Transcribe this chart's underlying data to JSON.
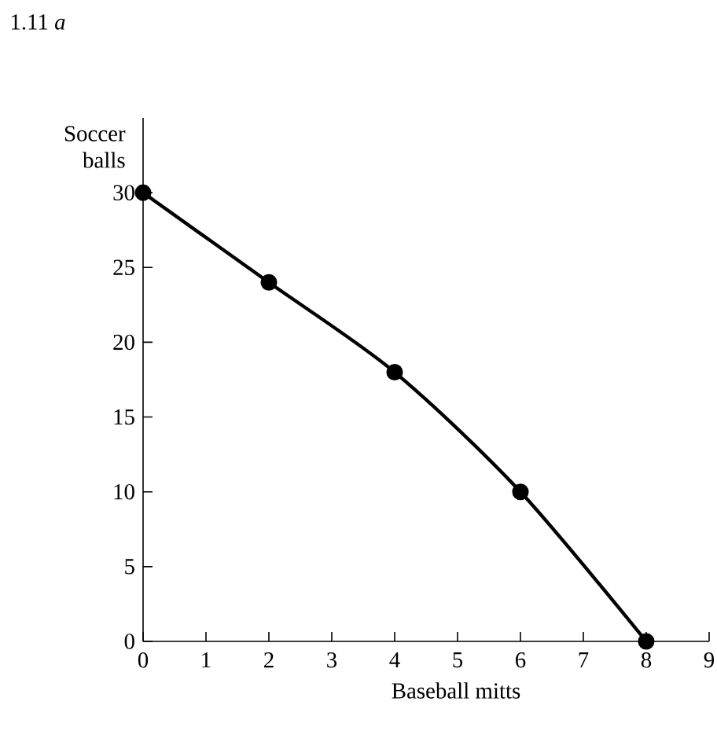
{
  "chart_data": {
    "type": "line",
    "title": "1.11 *a*",
    "xlabel": "Baseball mitts",
    "ylabel": "Soccer balls",
    "x": [
      0,
      2,
      4,
      6,
      8
    ],
    "series": [
      {
        "color": "#000000",
        "values": [
          30,
          24,
          18,
          10,
          0
        ]
      }
    ],
    "xlim": [
      0,
      9
    ],
    "ylim": [
      0,
      35
    ],
    "xticks": [
      0,
      1,
      2,
      3,
      4,
      5,
      6,
      7,
      8,
      9
    ],
    "yticks": [
      0,
      5,
      10,
      15,
      20,
      25,
      30
    ],
    "marker": "circle",
    "grid": false
  }
}
